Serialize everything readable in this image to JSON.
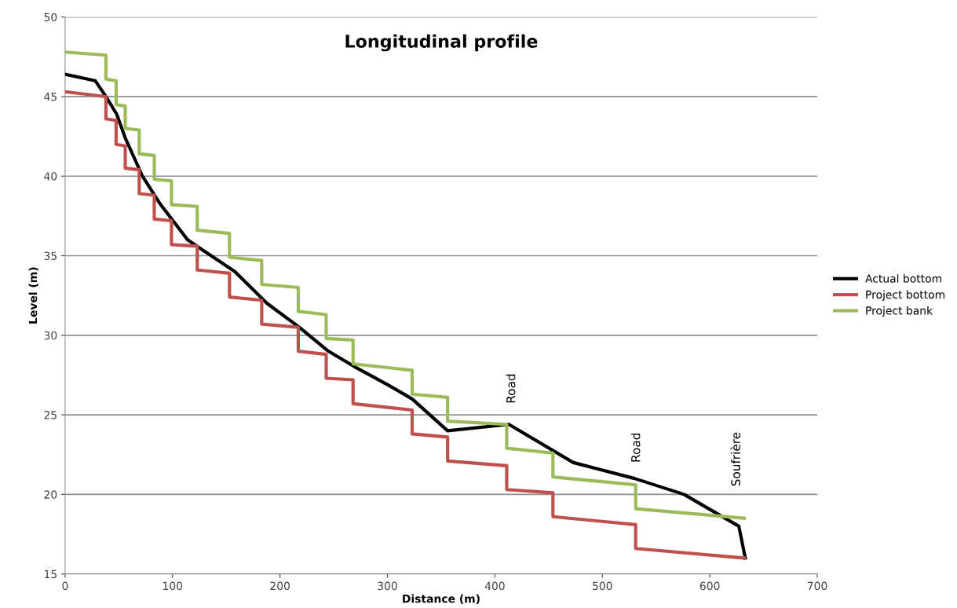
{
  "chart_data": {
    "type": "line",
    "title": "Longitudinal profile",
    "xlabel": "Distance (m)",
    "ylabel": "Level (m)",
    "xlim": [
      0,
      700
    ],
    "ylim": [
      15,
      50
    ],
    "xticks": [
      0,
      100,
      200,
      300,
      400,
      500,
      600,
      700
    ],
    "yticks": [
      15,
      20,
      25,
      30,
      35,
      40,
      45,
      50
    ],
    "grid": "y",
    "legend": "right",
    "marker": "none",
    "line_style": "solid",
    "series": [
      {
        "name": "Actual bottom",
        "color": "#000000",
        "x": [
          0,
          28,
          38,
          48,
          56,
          72,
          88,
          114,
          158,
          188,
          218,
          245,
          270,
          300,
          323,
          356,
          413,
          473,
          530,
          576,
          627,
          633
        ],
        "values": [
          46.4,
          46.0,
          45.0,
          43.9,
          42.4,
          40.0,
          38.3,
          36.0,
          34.0,
          32.0,
          30.5,
          29.0,
          28.0,
          26.9,
          26.0,
          24.0,
          24.4,
          22.0,
          21.0,
          20.0,
          18.0,
          16.0
        ]
      },
      {
        "name": "Project bottom",
        "color": "#c0504d",
        "x": [
          0,
          38,
          38,
          47.5,
          47.5,
          56,
          56,
          69,
          69,
          83,
          83,
          99,
          99,
          123,
          123,
          153,
          153,
          183,
          183,
          217,
          217,
          243,
          243,
          268,
          268,
          323,
          323,
          356,
          356,
          411,
          411,
          454,
          454,
          531,
          531,
          632
        ],
        "values": [
          45.3,
          45.0,
          43.6,
          43.5,
          42.0,
          41.9,
          40.5,
          40.4,
          38.9,
          38.8,
          37.3,
          37.2,
          35.7,
          35.6,
          34.1,
          33.9,
          32.4,
          32.2,
          30.7,
          30.5,
          29.0,
          28.8,
          27.3,
          27.2,
          25.7,
          25.3,
          23.8,
          23.6,
          22.1,
          21.8,
          20.3,
          20.1,
          18.6,
          18.1,
          16.6,
          16.0
        ]
      },
      {
        "name": "Project bank",
        "color": "#9bbb59",
        "x": [
          0,
          38,
          38,
          47.5,
          47.5,
          56,
          56,
          69,
          69,
          83,
          83,
          99,
          99,
          123,
          123,
          153,
          153,
          183,
          183,
          217,
          217,
          243,
          243,
          268,
          268,
          323,
          323,
          356,
          356,
          411,
          411,
          454,
          454,
          531,
          531,
          632
        ],
        "values": [
          47.8,
          47.6,
          46.1,
          46.0,
          44.5,
          44.4,
          43.0,
          42.9,
          41.4,
          41.3,
          39.8,
          39.7,
          38.2,
          38.1,
          36.6,
          36.4,
          34.9,
          34.7,
          33.2,
          33.0,
          31.5,
          31.3,
          29.8,
          29.7,
          28.2,
          27.8,
          26.3,
          26.1,
          24.6,
          24.4,
          22.9,
          22.6,
          21.1,
          20.6,
          19.1,
          18.5
        ]
      }
    ],
    "annotations": [
      "Road",
      "Road",
      "Soufrière"
    ]
  }
}
